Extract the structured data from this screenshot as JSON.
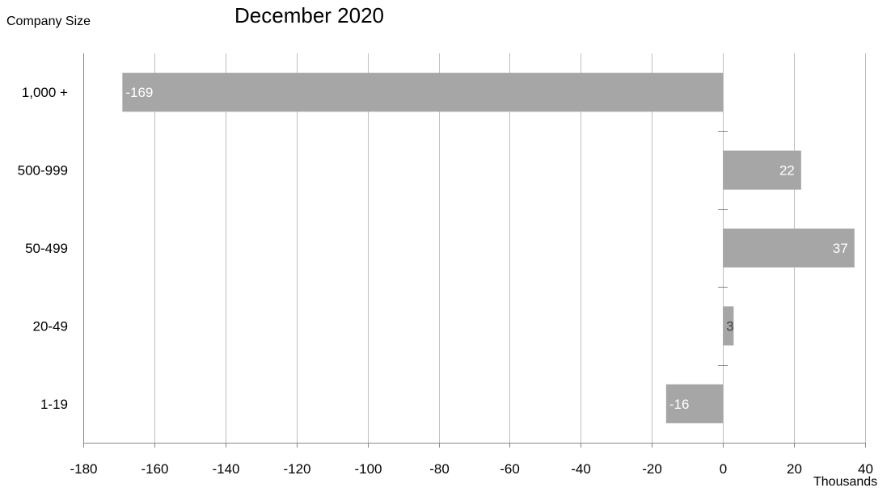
{
  "chart_data": {
    "type": "bar",
    "orientation": "horizontal",
    "title": "December 2020",
    "ylabel": "Company Size",
    "xlabel": "Thousands",
    "categories": [
      "1,000 +",
      "500-999",
      "50-499",
      "20-49",
      "1-19"
    ],
    "values": [
      -169,
      22,
      37,
      3,
      -16
    ],
    "xlim": [
      -180,
      40
    ],
    "xticks": [
      -180,
      -160,
      -140,
      -120,
      -100,
      -80,
      -60,
      -40,
      -20,
      0,
      20,
      40
    ],
    "grid": "vertical",
    "legend": "none",
    "bar_color": "#a6a6a6",
    "data_label_color": "#ffffff"
  }
}
